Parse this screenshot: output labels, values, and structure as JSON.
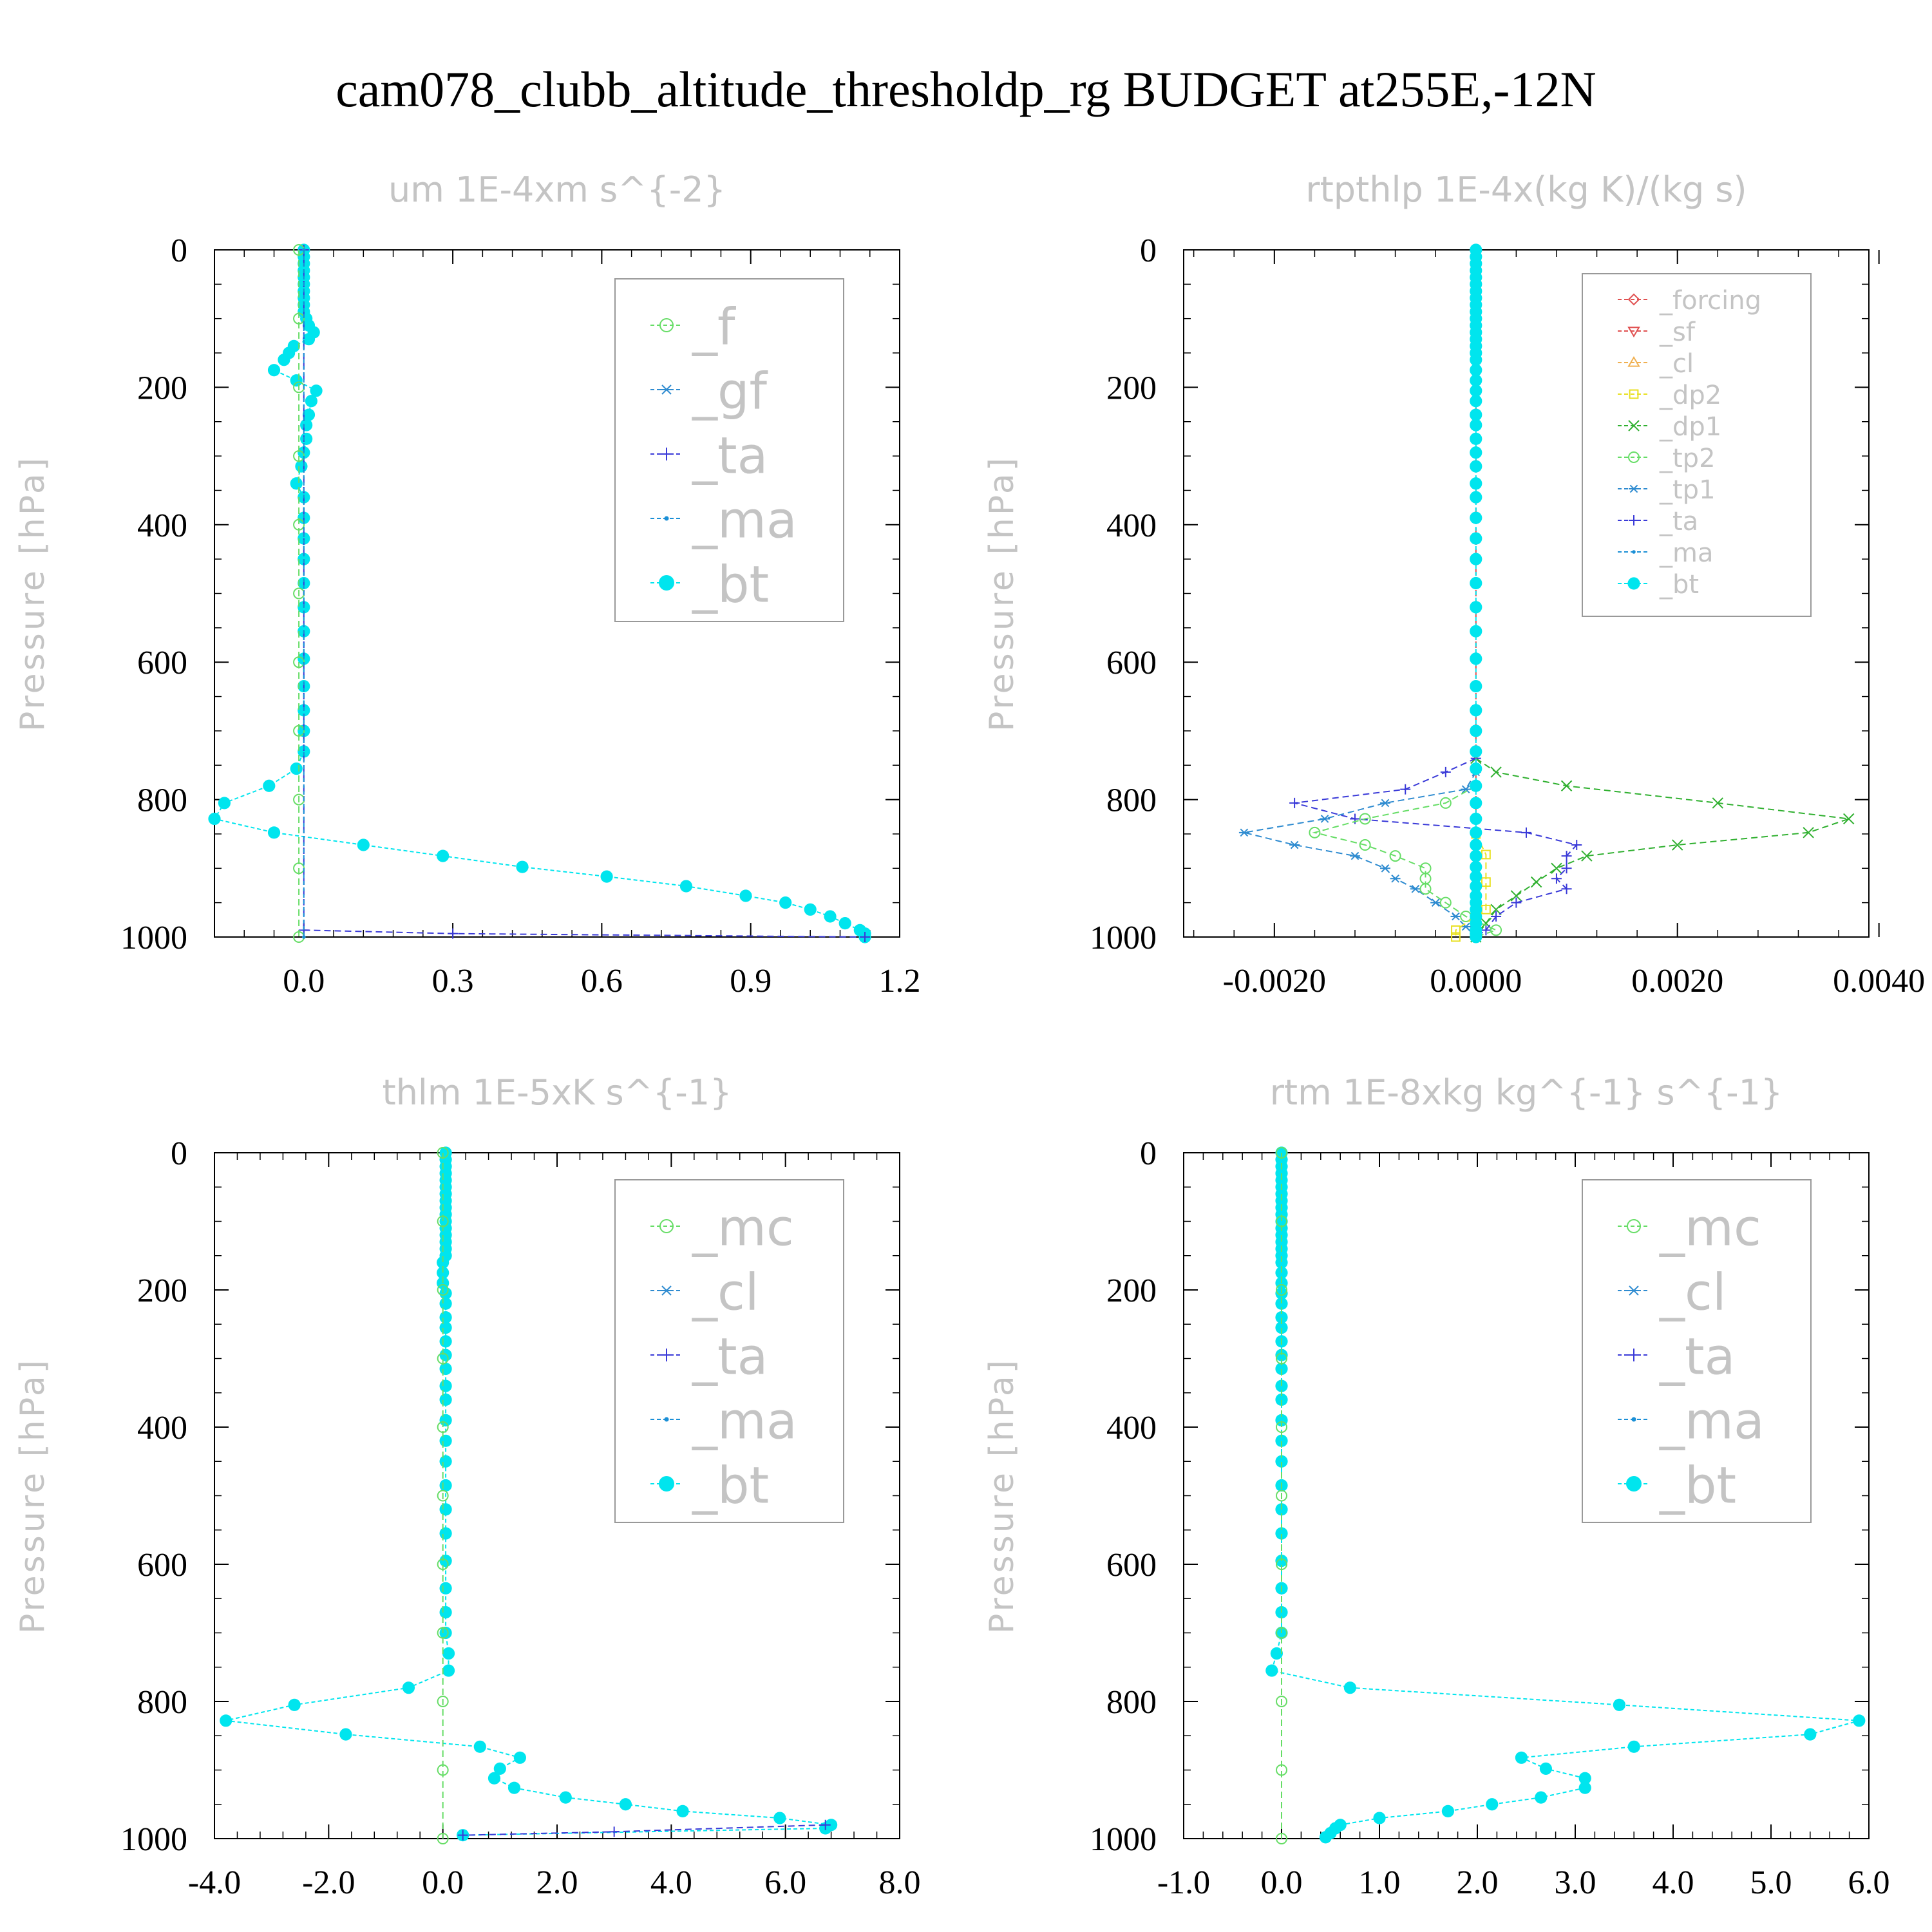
{
  "figure": {
    "title": "cam078_clubb_altitude_thresholdp_rg  BUDGET at255E,-12N"
  },
  "colors": {
    "bt": "#00e5ee",
    "ma": "#1a8fd6",
    "ta": "#3a3ad8",
    "f": "#66dd66",
    "mc": "#66dd66",
    "gf": "#2e8bd0",
    "cl_blue": "#2e8bd0",
    "forcing": "#e05050",
    "sf": "#e05050",
    "cl_orange": "#f0b050",
    "dp2": "#e8e020",
    "dp1": "#30b030",
    "tp2": "#66dd66",
    "tp1": "#2e8bd0",
    "axis": "#000000",
    "subtitle_gray": "#c4c4c4"
  },
  "chart_data": [
    {
      "type": "line",
      "title": "um   1E-4xm s^{-2}",
      "ylabel": "Pressure [hPa]",
      "ylim": [
        1000,
        0
      ],
      "xlim": [
        -0.18,
        1.2
      ],
      "xticks": [
        "0.0",
        "0.3",
        "0.6",
        "0.9",
        "1.2"
      ],
      "xtick_values": [
        0.0,
        0.3,
        0.6,
        0.9,
        1.2
      ],
      "yticks": [
        "0",
        "200",
        "400",
        "600",
        "800",
        "1000"
      ],
      "ytick_values": [
        0,
        200,
        400,
        600,
        800,
        1000
      ],
      "legend": [
        "_f",
        "_gf",
        "_ta",
        "_ma",
        "_bt"
      ],
      "legend_colors": [
        "#66dd66",
        "#2e8bd0",
        "#3a3ad8",
        "#1a8fd6",
        "#00e5ee"
      ],
      "legend_marker": [
        "circle-open",
        "star",
        "plus",
        "dot",
        "circle-filled"
      ],
      "series": [
        {
          "name": "_bt",
          "color": "#00e5ee",
          "p": [
            0,
            10,
            20,
            30,
            40,
            50,
            60,
            70,
            80,
            90,
            100,
            110,
            120,
            130,
            140,
            150,
            160,
            175,
            190,
            205,
            220,
            240,
            255,
            275,
            295,
            315,
            340,
            360,
            390,
            420,
            450,
            485,
            520,
            555,
            595,
            635,
            670,
            700,
            730,
            755,
            780,
            805,
            828,
            848,
            866,
            882,
            898,
            912,
            926,
            940,
            950,
            960,
            970,
            980,
            990,
            995,
            1000
          ],
          "x": [
            0,
            0,
            0,
            0,
            0,
            0,
            0,
            0,
            0,
            0,
            0.005,
            0.01,
            0.02,
            0.01,
            -0.02,
            -0.03,
            -0.04,
            -0.06,
            -0.015,
            0.025,
            0.015,
            0.01,
            0.005,
            0.005,
            0.0,
            -0.005,
            -0.015,
            0.0,
            0.0,
            0.0,
            0.0,
            0.0,
            0.0,
            0.0,
            0.0,
            0.0,
            0.0,
            0.0,
            0.0,
            -0.015,
            -0.07,
            -0.16,
            -0.18,
            -0.06,
            0.12,
            0.28,
            0.44,
            0.61,
            0.77,
            0.89,
            0.97,
            1.02,
            1.06,
            1.09,
            1.12,
            1.13,
            1.13
          ]
        },
        {
          "name": "_ta",
          "color": "#3a3ad8",
          "p": [
            0,
            990,
            995,
            1000
          ],
          "x": [
            0,
            0,
            0.3,
            1.13
          ]
        },
        {
          "name": "_f",
          "color": "#66dd66",
          "p": [
            0,
            100,
            200,
            300,
            400,
            500,
            600,
            700,
            800,
            900,
            1000
          ],
          "x": [
            -0.01,
            -0.01,
            -0.01,
            -0.01,
            -0.01,
            -0.01,
            -0.01,
            -0.01,
            -0.01,
            -0.01,
            -0.01
          ]
        },
        {
          "name": "_ma",
          "color": "#1a8fd6",
          "p": [
            0,
            1000
          ],
          "x": [
            0,
            0
          ]
        }
      ]
    },
    {
      "type": "line",
      "title": "rtpthlp   1E-4x(kg K)/(kg s)",
      "ylabel": "Pressure [hPa]",
      "ylim": [
        1000,
        0
      ],
      "xlim": [
        -0.0029,
        0.0039
      ],
      "xticks": [
        "-0.0020",
        "0.0000",
        "0.0020",
        "0.0040"
      ],
      "xtick_values": [
        -0.002,
        0.0,
        0.002,
        0.004
      ],
      "yticks": [
        "0",
        "200",
        "400",
        "600",
        "800",
        "1000"
      ],
      "ytick_values": [
        0,
        200,
        400,
        600,
        800,
        1000
      ],
      "legend": [
        "_forcing",
        "_sf",
        "_cl",
        "_dp2",
        "_dp1",
        "_tp2",
        "_tp1",
        "_ta",
        "_ma",
        "_bt"
      ],
      "legend_colors": [
        "#e05050",
        "#e05050",
        "#f0b050",
        "#e8e020",
        "#30b030",
        "#66dd66",
        "#2e8bd0",
        "#3a3ad8",
        "#1a8fd6",
        "#00e5ee"
      ],
      "legend_marker": [
        "diamond",
        "triangle-down",
        "triangle-up",
        "square",
        "x",
        "circle-open",
        "star",
        "plus",
        "dot",
        "circle-filled"
      ],
      "series": [
        {
          "name": "_dp1",
          "color": "#30b030",
          "p": [
            740,
            760,
            780,
            805,
            828,
            848,
            866,
            882,
            900,
            920,
            940,
            960,
            980,
            1000
          ],
          "x": [
            0,
            0.0002,
            0.0009,
            0.0024,
            0.0037,
            0.0033,
            0.002,
            0.0011,
            0.0008,
            0.0006,
            0.0004,
            0.0002,
            0.0001,
            0
          ]
        },
        {
          "name": "_tp1",
          "color": "#2e8bd0",
          "p": [
            760,
            785,
            805,
            828,
            848,
            866,
            882,
            900,
            915,
            930,
            950,
            970,
            985,
            1000
          ],
          "x": [
            0,
            -0.0001,
            -0.0009,
            -0.0015,
            -0.0023,
            -0.0018,
            -0.0012,
            -0.0009,
            -0.0008,
            -0.0006,
            -0.0004,
            -0.0002,
            -0.0001,
            0
          ]
        },
        {
          "name": "_ta",
          "color": "#3a3ad8",
          "p": [
            740,
            760,
            785,
            805,
            828,
            848,
            866,
            882,
            900,
            915,
            930,
            950,
            970,
            990,
            1000
          ],
          "x": [
            0,
            -0.0003,
            -0.0007,
            -0.0018,
            -0.0012,
            0.0005,
            0.001,
            0.0009,
            0.0009,
            0.0008,
            0.0009,
            0.0004,
            0.0002,
            0.0001,
            0
          ]
        },
        {
          "name": "_tp2",
          "color": "#66dd66",
          "p": [
            780,
            805,
            828,
            848,
            866,
            882,
            900,
            915,
            930,
            950,
            970,
            990,
            1000
          ],
          "x": [
            0,
            -0.0003,
            -0.0011,
            -0.0016,
            -0.0011,
            -0.0008,
            -0.0005,
            -0.0005,
            -0.0005,
            -0.0003,
            -0.0001,
            0.0002,
            0
          ]
        },
        {
          "name": "_dp2",
          "color": "#e8e020",
          "p": [
            850,
            880,
            920,
            960,
            990,
            1000
          ],
          "x": [
            0,
            0.0001,
            0.0001,
            0.0001,
            -0.0002,
            -0.0002
          ]
        },
        {
          "name": "_forcing",
          "color": "#e05050",
          "p": [
            0,
            1000
          ],
          "x": [
            0,
            0
          ]
        },
        {
          "name": "_bt",
          "color": "#00e5ee",
          "p": [
            0,
            10,
            20,
            30,
            40,
            50,
            60,
            70,
            80,
            90,
            100,
            110,
            120,
            130,
            140,
            150,
            160,
            175,
            190,
            205,
            220,
            240,
            255,
            275,
            295,
            315,
            340,
            360,
            390,
            420,
            450,
            485,
            520,
            555,
            595,
            635,
            670,
            700,
            730,
            755,
            780,
            805,
            828,
            848,
            866,
            882,
            898,
            912,
            926,
            940,
            950,
            960,
            970,
            980,
            990,
            995,
            1000
          ],
          "x": [
            0,
            0,
            0,
            0,
            0,
            0,
            0,
            0,
            0,
            0,
            0,
            0,
            0,
            0,
            0,
            0,
            0,
            0,
            0,
            0,
            0,
            0,
            0,
            0,
            0,
            0,
            0,
            0,
            0,
            0,
            0,
            0,
            0,
            0,
            0,
            0,
            0,
            0,
            0,
            0,
            0,
            0,
            0,
            0,
            0,
            0,
            0,
            0,
            0,
            0,
            0,
            0,
            0,
            0,
            0,
            0,
            0
          ]
        }
      ]
    },
    {
      "type": "line",
      "title": "thlm   1E-5xK s^{-1}",
      "ylabel": "Pressure [hPa]",
      "ylim": [
        1000,
        0
      ],
      "xlim": [
        -4.0,
        8.0
      ],
      "xticks": [
        "-4.0",
        "-2.0",
        "0.0",
        "2.0",
        "4.0",
        "6.0",
        "8.0"
      ],
      "xtick_values": [
        -4,
        -2,
        0,
        2,
        4,
        6,
        8
      ],
      "yticks": [
        "0",
        "200",
        "400",
        "600",
        "800",
        "1000"
      ],
      "ytick_values": [
        0,
        200,
        400,
        600,
        800,
        1000
      ],
      "legend": [
        "_mc",
        "_cl",
        "_ta",
        "_ma",
        "_bt"
      ],
      "legend_colors": [
        "#66dd66",
        "#2e8bd0",
        "#3a3ad8",
        "#1a8fd6",
        "#00e5ee"
      ],
      "legend_marker": [
        "circle-open",
        "star",
        "plus",
        "dot",
        "circle-filled"
      ],
      "series": [
        {
          "name": "_bt",
          "color": "#00e5ee",
          "p": [
            0,
            10,
            20,
            30,
            40,
            50,
            60,
            70,
            80,
            90,
            100,
            110,
            120,
            130,
            140,
            150,
            160,
            175,
            190,
            205,
            220,
            240,
            255,
            275,
            295,
            315,
            340,
            360,
            390,
            420,
            450,
            485,
            520,
            555,
            595,
            635,
            670,
            700,
            730,
            755,
            780,
            805,
            828,
            848,
            866,
            882,
            898,
            912,
            926,
            940,
            950,
            960,
            970,
            980,
            985,
            995
          ],
          "x": [
            0.05,
            0.05,
            0.05,
            0.05,
            0.05,
            0.05,
            0.05,
            0.05,
            0.05,
            0.05,
            0.05,
            0.05,
            0.05,
            0.05,
            0.05,
            0.05,
            0.0,
            0.0,
            0.0,
            0.05,
            0.05,
            0.05,
            0.05,
            0.05,
            0.05,
            0.05,
            0.05,
            0.05,
            0.05,
            0.05,
            0.05,
            0.05,
            0.05,
            0.05,
            0.05,
            0.05,
            0.05,
            0.05,
            0.1,
            0.1,
            -0.6,
            -2.6,
            -3.8,
            -1.7,
            0.65,
            1.35,
            1.0,
            0.9,
            1.25,
            2.15,
            3.2,
            4.2,
            5.9,
            6.8,
            6.7,
            0.35
          ]
        },
        {
          "name": "_mc",
          "color": "#66dd66",
          "p": [
            0,
            100,
            200,
            300,
            400,
            500,
            600,
            700,
            800,
            900,
            1000
          ],
          "x": [
            0,
            0,
            0,
            0,
            0,
            0,
            0,
            0,
            0,
            0,
            0
          ]
        },
        {
          "name": "_ta",
          "color": "#3a3ad8",
          "p": [
            980,
            990,
            995
          ],
          "x": [
            6.7,
            3.0,
            0.35
          ]
        }
      ]
    },
    {
      "type": "line",
      "title": "rtm   1E-8xkg kg^{-1} s^{-1}",
      "ylabel": "Pressure [hPa]",
      "ylim": [
        1000,
        0
      ],
      "xlim": [
        -1.0,
        6.0
      ],
      "xticks": [
        "-1.0",
        "0.0",
        "1.0",
        "2.0",
        "3.0",
        "4.0",
        "5.0",
        "6.0"
      ],
      "xtick_values": [
        -1,
        0,
        1,
        2,
        3,
        4,
        5,
        6
      ],
      "yticks": [
        "0",
        "200",
        "400",
        "600",
        "800",
        "1000"
      ],
      "ytick_values": [
        0,
        200,
        400,
        600,
        800,
        1000
      ],
      "legend": [
        "_mc",
        "_cl",
        "_ta",
        "_ma",
        "_bt"
      ],
      "legend_colors": [
        "#66dd66",
        "#2e8bd0",
        "#3a3ad8",
        "#1a8fd6",
        "#00e5ee"
      ],
      "legend_marker": [
        "circle-open",
        "star",
        "plus",
        "dot",
        "circle-filled"
      ],
      "series": [
        {
          "name": "_bt",
          "color": "#00e5ee",
          "p": [
            0,
            10,
            20,
            30,
            40,
            50,
            60,
            70,
            80,
            90,
            100,
            110,
            120,
            130,
            140,
            150,
            160,
            175,
            190,
            205,
            220,
            240,
            255,
            275,
            295,
            315,
            340,
            360,
            390,
            420,
            450,
            485,
            520,
            555,
            595,
            635,
            670,
            700,
            730,
            755,
            780,
            805,
            828,
            848,
            866,
            882,
            898,
            912,
            926,
            940,
            950,
            960,
            970,
            980,
            985,
            992,
            998
          ],
          "x": [
            0,
            0,
            0,
            0,
            0,
            0,
            0,
            0,
            0,
            0,
            0,
            0,
            0,
            0,
            0,
            0,
            0,
            0,
            0,
            0,
            0,
            0,
            0,
            0,
            0,
            0,
            0,
            0,
            0,
            0,
            0,
            0,
            0,
            0,
            0,
            0,
            0,
            0,
            -0.05,
            -0.1,
            0.7,
            3.45,
            5.9,
            5.4,
            3.6,
            2.45,
            2.7,
            3.1,
            3.1,
            2.65,
            2.15,
            1.7,
            1.0,
            0.6,
            0.55,
            0.5,
            0.45
          ]
        },
        {
          "name": "_mc",
          "color": "#66dd66",
          "p": [
            0,
            100,
            200,
            300,
            400,
            500,
            600,
            700,
            800,
            900,
            1000
          ],
          "x": [
            0,
            0,
            0,
            0,
            0,
            0,
            0,
            0,
            0,
            0,
            0
          ]
        }
      ]
    }
  ]
}
